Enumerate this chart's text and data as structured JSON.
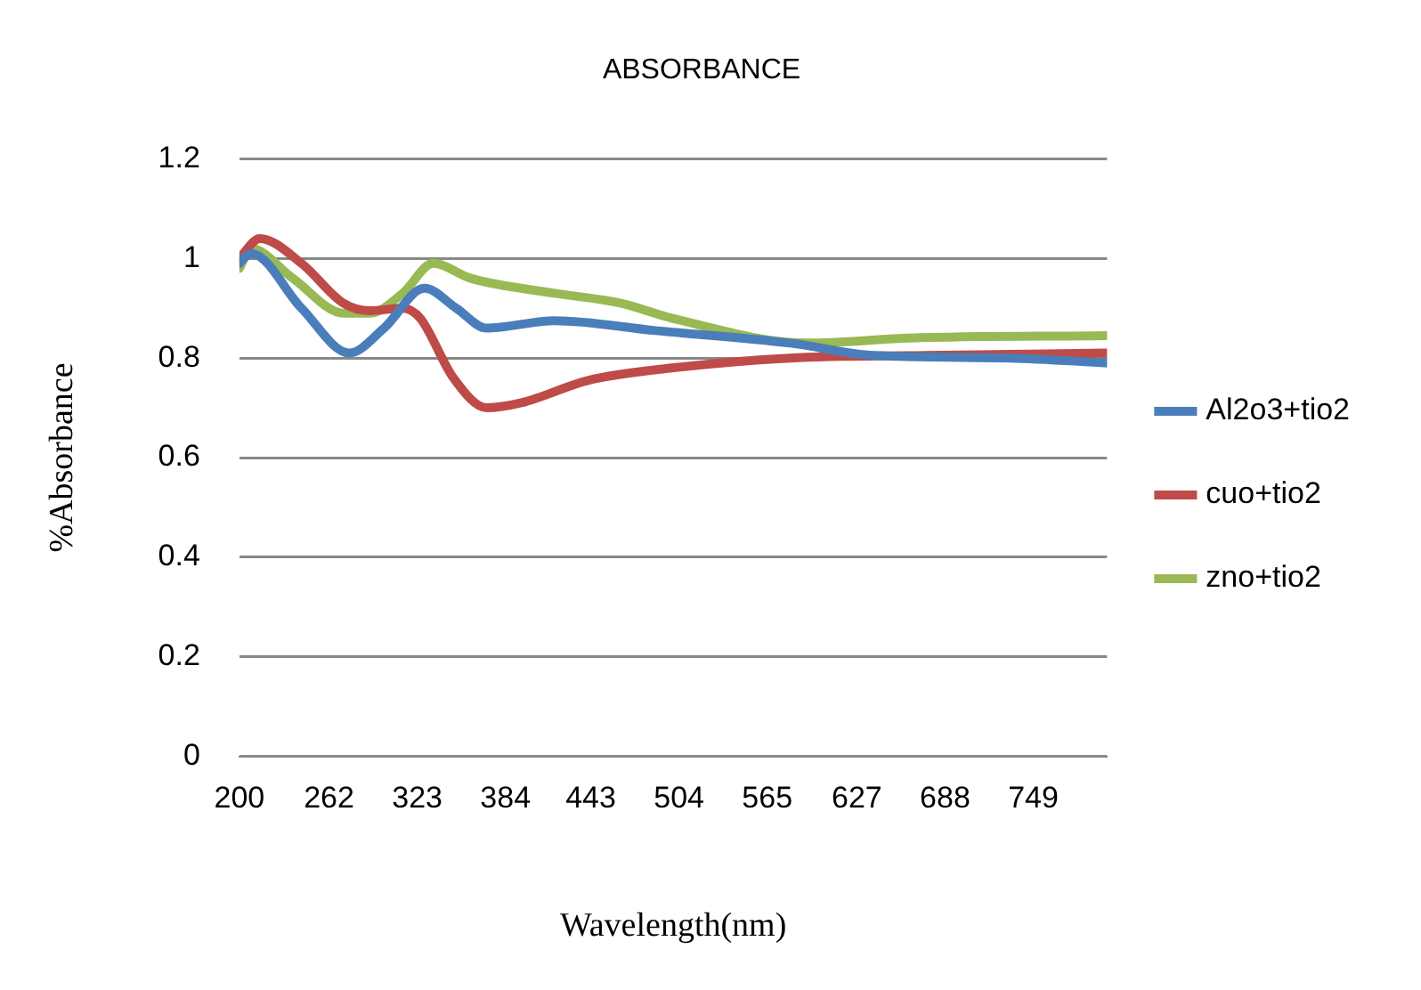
{
  "chart_data": {
    "type": "line",
    "title": "ABSORBANCE",
    "xlabel": "Wavelength(nm)",
    "ylabel": "%Absorbance",
    "xlim": [
      200,
      800
    ],
    "xticks": [
      200,
      262,
      323,
      384,
      443,
      504,
      565,
      627,
      688,
      749
    ],
    "ylim": [
      0,
      1.2
    ],
    "yticks": [
      0,
      0.2,
      0.4,
      0.6,
      0.8,
      1,
      1.2
    ],
    "grid": "y",
    "legend": "right",
    "marker": "none",
    "line_style": "solid",
    "series": [
      {
        "name": "Al2o3+tio2",
        "color": "#4a7ebb",
        "x": [
          200,
          208,
          243,
          276,
          300,
          328,
          350,
          371,
          418,
          488,
          581,
          639,
          733,
          800
        ],
        "values": [
          0.99,
          1.01,
          0.9,
          0.81,
          0.86,
          0.94,
          0.9,
          0.86,
          0.875,
          0.855,
          0.83,
          0.805,
          0.8,
          0.79
        ]
      },
      {
        "name": "cuo+tio2",
        "color": "#be4b48",
        "x": [
          200,
          214,
          243,
          272,
          290,
          313,
          325,
          348,
          371,
          395,
          441,
          499,
          581,
          674,
          800
        ],
        "values": [
          1.0,
          1.04,
          0.99,
          0.91,
          0.895,
          0.9,
          0.88,
          0.76,
          0.7,
          0.71,
          0.755,
          0.78,
          0.8,
          0.805,
          0.81
        ]
      },
      {
        "name": "zno+tio2",
        "color": "#98b954",
        "x": [
          200,
          208,
          237,
          272,
          290,
          313,
          334,
          360,
          418,
          464,
          499,
          593,
          663,
          800
        ],
        "values": [
          0.98,
          1.02,
          0.96,
          0.89,
          0.89,
          0.93,
          0.99,
          0.96,
          0.93,
          0.91,
          0.88,
          0.83,
          0.84,
          0.845
        ]
      }
    ]
  }
}
